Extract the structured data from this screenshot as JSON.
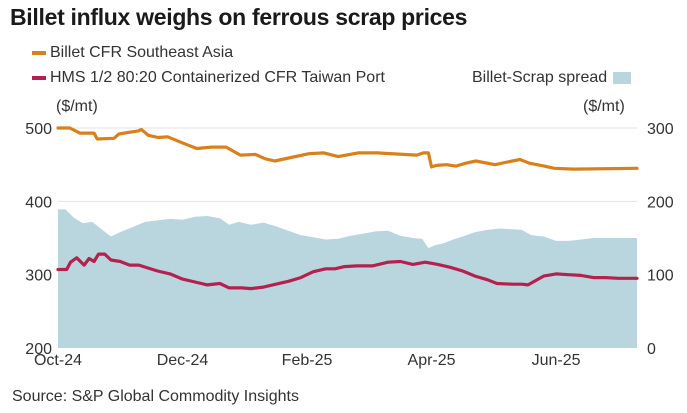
{
  "title": "Billet influx weighs on ferrous scrap prices",
  "legend": {
    "billet_label": "Billet CFR Southeast Asia",
    "hms_label": "HMS 1/2 80:20 Containerized CFR Taiwan Port",
    "spread_label": "Billet-Scrap spread"
  },
  "units": {
    "left": "($/mt)",
    "right": "($/mt)"
  },
  "source": "Source: S&P Global Commodity Insights",
  "colors": {
    "billet": "#d9801a",
    "hms": "#b5214f",
    "spread": "#b9d6de",
    "grid": "#e3e3e3"
  },
  "chart_data": {
    "type": "line",
    "title": "Billet influx weighs on ferrous scrap prices",
    "xlabel": "",
    "ylabel_left": "($/mt)",
    "ylabel_right": "($/mt)",
    "x_range": [
      "2024-10-01",
      "2025-07-10"
    ],
    "x_ticks": [
      "Oct-24",
      "Dec-24",
      "Feb-25",
      "Apr-25",
      "Jun-25"
    ],
    "x_tick_months": [
      0,
      2,
      4,
      6,
      8
    ],
    "x_max_months": 9.3,
    "ylim_left": [
      200,
      500
    ],
    "yticks_left": [
      "500",
      "400",
      "300",
      "200"
    ],
    "yticks_left_values": [
      500,
      400,
      300,
      200
    ],
    "ylim_right": [
      0,
      300
    ],
    "yticks_right": [
      "300",
      "200",
      "100",
      "0"
    ],
    "yticks_right_values": [
      300,
      200,
      100,
      0
    ],
    "grid": true,
    "legend_position": "top-left",
    "series": [
      {
        "name": "Billet CFR Southeast Asia",
        "axis": "left",
        "type": "line",
        "x_months": [
          0,
          0.19,
          0.35,
          0.58,
          0.63,
          0.9,
          0.98,
          1.29,
          1.34,
          1.45,
          1.61,
          1.76,
          1.99,
          2.23,
          2.46,
          2.7,
          2.93,
          3.17,
          3.33,
          3.48,
          4.03,
          4.27,
          4.5,
          4.82,
          5.13,
          5.76,
          5.87,
          5.95,
          6.0,
          6.08,
          6.24,
          6.39,
          6.55,
          6.71,
          7.02,
          7.18,
          7.42,
          7.57,
          7.81,
          7.97,
          8.28,
          9.3
        ],
        "values": [
          500,
          500,
          493,
          493,
          485,
          486,
          492,
          496,
          498,
          490,
          487,
          488,
          480,
          472,
          474,
          474,
          463,
          464,
          458,
          455,
          465,
          466,
          461,
          466,
          466,
          463,
          466,
          466,
          447,
          449,
          450,
          448,
          452,
          455,
          450,
          453,
          457,
          452,
          448,
          445,
          444,
          445
        ]
      },
      {
        "name": "HMS 1/2 80:20 Containerized CFR Taiwan Port",
        "axis": "left",
        "type": "line",
        "x_months": [
          0,
          0.14,
          0.2,
          0.3,
          0.42,
          0.5,
          0.58,
          0.65,
          0.75,
          0.85,
          1.0,
          1.15,
          1.3,
          1.45,
          1.6,
          1.8,
          2.0,
          2.2,
          2.4,
          2.6,
          2.75,
          2.95,
          3.1,
          3.3,
          3.5,
          3.7,
          3.9,
          4.1,
          4.3,
          4.45,
          4.6,
          4.8,
          5.05,
          5.3,
          5.5,
          5.7,
          5.9,
          6.1,
          6.3,
          6.5,
          6.7,
          6.9,
          7.05,
          7.3,
          7.45,
          7.55,
          7.8,
          8.0,
          8.2,
          8.4,
          8.6,
          8.8,
          9.0,
          9.3
        ],
        "values": [
          307,
          307,
          317,
          323,
          313,
          322,
          318,
          328,
          328,
          320,
          318,
          313,
          313,
          309,
          305,
          301,
          294,
          290,
          286,
          288,
          282,
          282,
          281,
          283,
          287,
          291,
          296,
          304,
          308,
          308,
          311,
          312,
          312,
          317,
          318,
          314,
          317,
          314,
          310,
          305,
          298,
          293,
          288,
          287,
          287,
          286,
          298,
          301,
          300,
          299,
          296,
          296,
          295,
          295
        ]
      },
      {
        "name": "Billet-Scrap spread",
        "axis": "right",
        "type": "area",
        "x_months": [
          0,
          0.12,
          0.25,
          0.4,
          0.55,
          0.7,
          0.85,
          1.0,
          1.2,
          1.4,
          1.6,
          1.8,
          2.0,
          2.2,
          2.4,
          2.6,
          2.75,
          2.9,
          3.1,
          3.3,
          3.5,
          3.7,
          3.9,
          4.1,
          4.3,
          4.5,
          4.7,
          4.9,
          5.1,
          5.3,
          5.5,
          5.7,
          5.85,
          5.95,
          6.05,
          6.2,
          6.35,
          6.5,
          6.7,
          6.9,
          7.1,
          7.3,
          7.45,
          7.6,
          7.8,
          8.0,
          8.2,
          8.4,
          8.6,
          8.8,
          9.0,
          9.3
        ],
        "values": [
          189,
          189,
          178,
          170,
          172,
          162,
          152,
          158,
          165,
          172,
          174,
          176,
          175,
          179,
          180,
          177,
          168,
          172,
          168,
          171,
          166,
          160,
          154,
          151,
          148,
          149,
          153,
          156,
          159,
          160,
          153,
          150,
          149,
          136,
          140,
          143,
          148,
          152,
          158,
          161,
          163,
          162,
          161,
          154,
          152,
          146,
          146,
          148,
          150,
          150,
          150,
          150
        ]
      }
    ]
  }
}
